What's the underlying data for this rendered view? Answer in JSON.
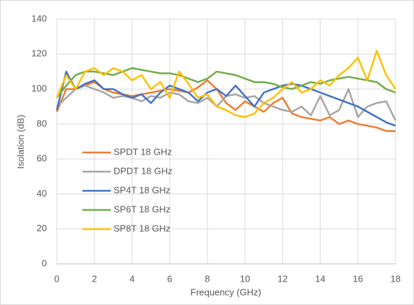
{
  "chart_data": {
    "type": "line",
    "x_label": "Frequency (GHz)",
    "y_label": "Isolation (dB)",
    "x": [
      0,
      0.5,
      1,
      1.5,
      2,
      2.5,
      3,
      3.5,
      4,
      4.5,
      5,
      5.5,
      6,
      6.5,
      7,
      7.5,
      8,
      8.5,
      9,
      9.5,
      10,
      10.5,
      11,
      11.5,
      12,
      12.5,
      13,
      13.5,
      14,
      14.5,
      15,
      15.5,
      16,
      16.5,
      17,
      17.5,
      18
    ],
    "series": [
      {
        "name": "SPDT 18 GHz",
        "color": "#ed7d31",
        "values": [
          87,
          100,
          100,
          102,
          104,
          100,
          98,
          97,
          96,
          97,
          98,
          99,
          100,
          99,
          98,
          101,
          105,
          100,
          92,
          88,
          93,
          90,
          87,
          92,
          95,
          86,
          84,
          83,
          82,
          84,
          80,
          82,
          80,
          79,
          78,
          76,
          76
        ]
      },
      {
        "name": "DPDT 18 GHz",
        "color": "#a5a5a5",
        "values": [
          90,
          95,
          100,
          102,
          100,
          98,
          95,
          96,
          95,
          93,
          96,
          95,
          98,
          97,
          93,
          92,
          95,
          90,
          96,
          97,
          95,
          96,
          92,
          90,
          88,
          87,
          90,
          85,
          96,
          85,
          88,
          100,
          84,
          90,
          92,
          93,
          82
        ]
      },
      {
        "name": "SP4T 18 GHz",
        "color": "#4472c4",
        "values": [
          88,
          110,
          100,
          103,
          105,
          100,
          100,
          97,
          95,
          97,
          92,
          98,
          102,
          100,
          98,
          93,
          98,
          100,
          96,
          102,
          96,
          90,
          98,
          100,
          102,
          103,
          102,
          100,
          98,
          96,
          94,
          92,
          90,
          87,
          84,
          81,
          79
        ]
      },
      {
        "name": "SP6T 18 GHz",
        "color": "#70ad47",
        "values": [
          95,
          102,
          108,
          110,
          110,
          109,
          108,
          110,
          112,
          111,
          110,
          109,
          109,
          108,
          106,
          104,
          106,
          110,
          109,
          108,
          106,
          104,
          104,
          103,
          101,
          100,
          102,
          104,
          103,
          105,
          106,
          107,
          106,
          105,
          104,
          100,
          98
        ]
      },
      {
        "name": "SP8T 18 GHz",
        "color": "#ffc000",
        "values": [
          95,
          108,
          100,
          110,
          112,
          108,
          112,
          110,
          105,
          108,
          100,
          104,
          95,
          110,
          103,
          95,
          97,
          90,
          88,
          85,
          84,
          86,
          92,
          95,
          100,
          104,
          98,
          100,
          105,
          102,
          108,
          112,
          118,
          105,
          122,
          108,
          100
        ]
      }
    ],
    "xlim": [
      0,
      18
    ],
    "xticks": [
      0,
      2,
      4,
      6,
      8,
      10,
      12,
      14,
      16,
      18
    ],
    "ylim": [
      0,
      140
    ],
    "yticks": [
      0,
      20,
      40,
      60,
      80,
      100,
      120,
      140
    ],
    "grid": true,
    "legend": "lower left"
  }
}
